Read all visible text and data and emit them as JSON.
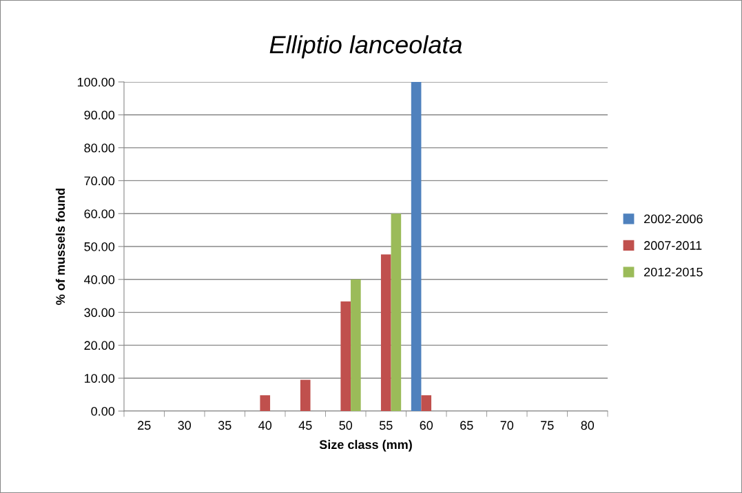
{
  "chart_data": {
    "type": "bar",
    "title": "Elliptio lanceolata",
    "xlabel": "Size class (mm)",
    "ylabel": "% of mussels found",
    "categories": [
      "25",
      "30",
      "35",
      "40",
      "45",
      "50",
      "55",
      "60",
      "65",
      "70",
      "75",
      "80"
    ],
    "series": [
      {
        "name": "2002-2006",
        "color": "#4f81bd",
        "values": [
          0,
          0,
          0,
          0,
          0,
          0,
          0,
          100,
          0,
          0,
          0,
          0
        ]
      },
      {
        "name": "2007-2011",
        "color": "#c0504d",
        "values": [
          0,
          0,
          0,
          4.8,
          9.5,
          33.3,
          47.6,
          4.8,
          0,
          0,
          0,
          0
        ]
      },
      {
        "name": "2012-2015",
        "color": "#9bbb59",
        "values": [
          0,
          0,
          0,
          0,
          0,
          40,
          60,
          0,
          0,
          0,
          0,
          0
        ]
      }
    ],
    "ylim": [
      0,
      100
    ],
    "yticks": [
      {
        "value": 0,
        "label": "0.00"
      },
      {
        "value": 10,
        "label": "10.00"
      },
      {
        "value": 20,
        "label": "20.00"
      },
      {
        "value": 30,
        "label": "30.00"
      },
      {
        "value": 40,
        "label": "40.00"
      },
      {
        "value": 50,
        "label": "50.00"
      },
      {
        "value": 60,
        "label": "60.00"
      },
      {
        "value": 70,
        "label": "70.00"
      },
      {
        "value": 80,
        "label": "80.00"
      },
      {
        "value": 90,
        "label": "90.00"
      },
      {
        "value": 100,
        "label": "100.00"
      }
    ],
    "grid": "y",
    "legend": "right"
  }
}
